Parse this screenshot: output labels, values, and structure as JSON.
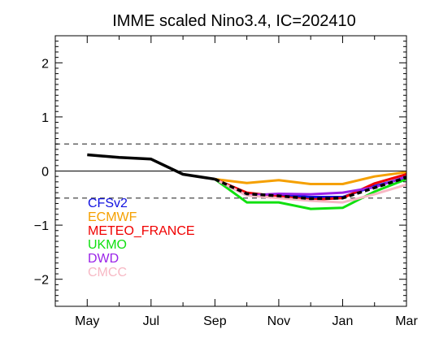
{
  "chart_data": {
    "type": "line",
    "title": "IMME scaled Nino3.4, IC=202410",
    "xlabel": "",
    "ylabel": "",
    "x_ticks": [
      "May",
      "Jul",
      "Sep",
      "Nov",
      "Jan",
      "Mar"
    ],
    "y_ticks": [
      "2",
      "1",
      "0",
      "−1",
      "−2"
    ],
    "ylim": [
      -2.5,
      2.5
    ],
    "xlim": [
      "Apr 2024",
      "Mar 2025"
    ],
    "grid": false,
    "legend_position": "bottom-left",
    "reference_lines": [
      {
        "y": 0,
        "style": "solid"
      },
      {
        "y": 0.5,
        "style": "dashed"
      },
      {
        "y": -0.5,
        "style": "dashed"
      }
    ],
    "observed": {
      "x": [
        "May",
        "Jun",
        "Jul",
        "Aug",
        "Sep"
      ],
      "values": [
        0.3,
        0.25,
        0.22,
        -0.06,
        -0.15
      ]
    },
    "series": [
      {
        "name": "CFSv2",
        "color": "#1010e0",
        "x": [
          "Sep",
          "Oct",
          "Nov",
          "Dec",
          "Jan",
          "Feb",
          "Mar"
        ],
        "values": [
          -0.15,
          -0.43,
          -0.44,
          -0.48,
          -0.48,
          -0.28,
          -0.12
        ]
      },
      {
        "name": "ECMWF",
        "color": "#f5a000",
        "x": [
          "Sep",
          "Oct",
          "Nov",
          "Dec",
          "Jan",
          "Feb",
          "Mar"
        ],
        "values": [
          -0.15,
          -0.22,
          -0.17,
          -0.24,
          -0.24,
          -0.1,
          -0.02
        ]
      },
      {
        "name": "METEO_FRANCE",
        "color": "#f00000",
        "x": [
          "Sep",
          "Oct",
          "Nov",
          "Dec",
          "Jan",
          "Feb",
          "Mar"
        ],
        "values": [
          -0.15,
          -0.4,
          -0.47,
          -0.53,
          -0.5,
          -0.23,
          -0.06
        ]
      },
      {
        "name": "UKMO",
        "color": "#10e010",
        "x": [
          "Sep",
          "Oct",
          "Nov",
          "Dec",
          "Jan",
          "Feb",
          "Mar"
        ],
        "values": [
          -0.15,
          -0.58,
          -0.58,
          -0.7,
          -0.68,
          -0.38,
          -0.15
        ]
      },
      {
        "name": "DWD",
        "color": "#9a22e8",
        "x": [
          "Sep",
          "Oct",
          "Nov",
          "Dec",
          "Jan",
          "Feb",
          "Mar"
        ],
        "values": [
          -0.15,
          -0.45,
          -0.42,
          -0.43,
          -0.4,
          -0.3,
          -0.1
        ]
      },
      {
        "name": "CMCC",
        "color": "#f7b8c4",
        "x": [
          "Sep",
          "Oct",
          "Nov",
          "Dec",
          "Jan",
          "Feb",
          "Mar"
        ],
        "values": [
          -0.15,
          -0.45,
          -0.5,
          -0.55,
          -0.58,
          -0.43,
          -0.25
        ]
      }
    ],
    "ensemble_mean": {
      "x": [
        "Sep",
        "Oct",
        "Nov",
        "Dec",
        "Jan",
        "Feb",
        "Mar"
      ],
      "values": [
        -0.15,
        -0.42,
        -0.46,
        -0.51,
        -0.5,
        -0.31,
        -0.12
      ],
      "style": "dashed"
    }
  }
}
